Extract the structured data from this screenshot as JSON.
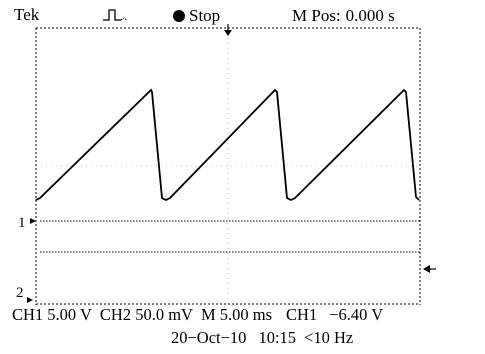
{
  "header": {
    "brand": "Tek",
    "run_state": "Stop",
    "mpos_label": "M Pos:",
    "mpos_value": "0.000 s"
  },
  "markers": {
    "ch1_label": "1",
    "ch2_label": "2"
  },
  "waveform": {
    "type": "sawtooth",
    "periods_visible": 3,
    "description_note": ""
  },
  "status": {
    "ch1_scale": "CH1 5.00 V",
    "ch2_scale": "CH2 50.0 mV",
    "timebase": "M 5.00 ms",
    "trigger_source": "CH1",
    "trigger_level": "−6.40 V",
    "date": "20−Oct−10",
    "time": "10:15",
    "freq": "<10 Hz"
  },
  "colors": {
    "trace": "#000000",
    "grid": "#9a9a9a",
    "background": "#ffffff"
  }
}
